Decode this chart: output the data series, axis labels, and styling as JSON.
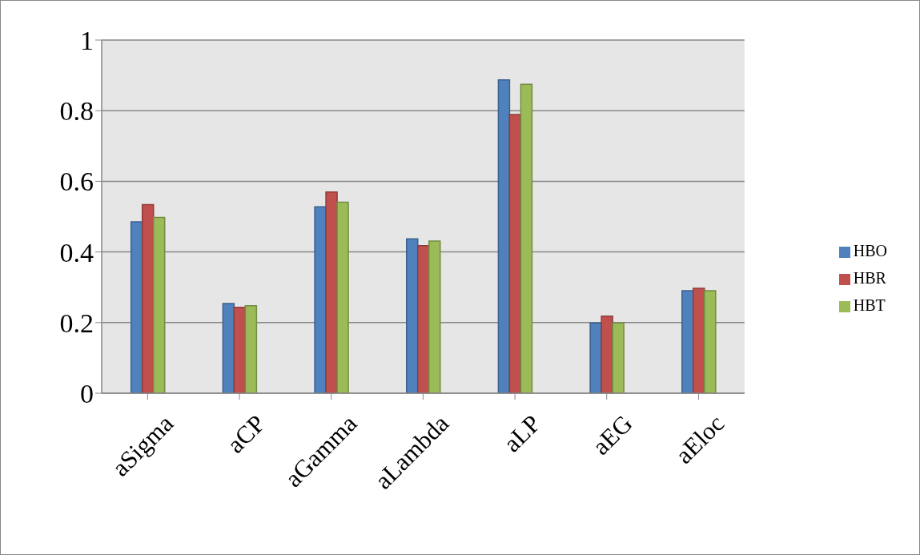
{
  "chart_data": {
    "type": "bar",
    "categories": [
      "aSigma",
      "aCP",
      "aGamma",
      "aLambda",
      "aLP",
      "aEG",
      "aEloc"
    ],
    "series": [
      {
        "name": "HBO",
        "color": "#4f81bd",
        "values": [
          0.485,
          0.254,
          0.528,
          0.437,
          0.887,
          0.199,
          0.29
        ]
      },
      {
        "name": "HBR",
        "color": "#c0504d",
        "values": [
          0.534,
          0.243,
          0.57,
          0.418,
          0.789,
          0.218,
          0.297
        ]
      },
      {
        "name": "HBT",
        "color": "#9bbb59",
        "values": [
          0.498,
          0.248,
          0.541,
          0.431,
          0.875,
          0.199,
          0.29
        ]
      }
    ],
    "ylim": [
      0,
      1
    ],
    "yticks": [
      0,
      0.2,
      0.4,
      0.6,
      0.8,
      1
    ],
    "grid": "y",
    "legend": "right"
  }
}
